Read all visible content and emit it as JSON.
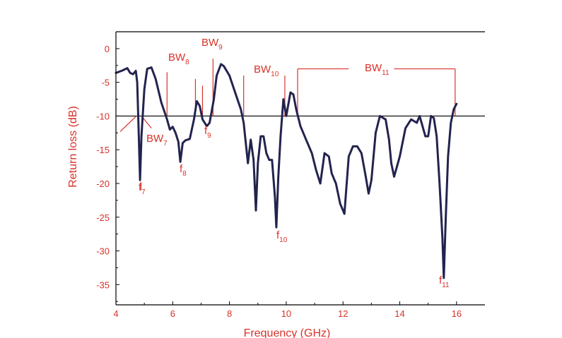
{
  "chart_data": {
    "type": "line",
    "xlabel": "Frequency (GHz)",
    "ylabel": "Return loss (dB)",
    "xlim": [
      4,
      17
    ],
    "ylim": [
      -38,
      2.5
    ],
    "xticks": [
      "4",
      "6",
      "8",
      "10",
      "12",
      "14",
      "16"
    ],
    "yticks": [
      "0",
      "-5",
      "-10",
      "-15",
      "-20",
      "-25",
      "-30",
      "-35"
    ],
    "reference_line_y": -10,
    "grid": false,
    "colors": {
      "curve": "#23234f",
      "accent": "#d8322a",
      "axis": "#000000"
    },
    "series": [
      {
        "x": [
          4.0,
          4.2,
          4.4,
          4.5,
          4.6,
          4.7,
          4.75,
          4.8,
          4.85,
          4.9,
          5.0,
          5.1,
          5.25,
          5.4,
          5.6,
          5.8,
          5.9,
          6.0,
          6.1,
          6.2,
          6.27,
          6.35,
          6.45,
          6.6,
          6.75,
          6.85,
          6.95,
          7.05,
          7.2,
          7.3,
          7.45,
          7.55,
          7.7,
          7.8,
          8.0,
          8.2,
          8.4,
          8.5,
          8.6,
          8.65,
          8.75,
          8.85,
          8.93,
          9.0,
          9.1,
          9.2,
          9.3,
          9.4,
          9.5,
          9.6,
          9.65,
          9.72,
          9.8,
          9.9,
          10.0,
          10.15,
          10.25,
          10.35,
          10.5,
          10.7,
          10.9,
          11.05,
          11.2,
          11.35,
          11.5,
          11.6,
          11.75,
          11.9,
          12.05,
          12.2,
          12.35,
          12.5,
          12.65,
          12.8,
          12.9,
          13.0,
          13.15,
          13.3,
          13.5,
          13.62,
          13.7,
          13.8,
          14.0,
          14.2,
          14.4,
          14.6,
          14.7,
          14.8,
          14.9,
          15.0,
          15.1,
          15.2,
          15.3,
          15.4,
          15.5,
          15.55,
          15.62,
          15.7,
          15.8,
          15.9,
          16.0
        ],
        "y": [
          -3.6,
          -3.3,
          -2.9,
          -3.6,
          -3.8,
          -3.3,
          -5.0,
          -12.0,
          -19.5,
          -13.0,
          -6.0,
          -3.0,
          -2.8,
          -4.5,
          -8.0,
          -10.5,
          -12.0,
          -11.6,
          -12.5,
          -13.8,
          -16.8,
          -14.0,
          -13.6,
          -13.4,
          -10.5,
          -7.8,
          -8.5,
          -10.5,
          -11.5,
          -11.0,
          -7.5,
          -4.0,
          -2.3,
          -2.6,
          -4.0,
          -6.5,
          -9.0,
          -11.0,
          -15.0,
          -17.0,
          -13.5,
          -16.5,
          -24.0,
          -17.0,
          -13.0,
          -13.0,
          -15.5,
          -16.5,
          -16.5,
          -22.0,
          -26.5,
          -19.0,
          -13.0,
          -7.5,
          -10.0,
          -6.5,
          -6.8,
          -9.0,
          -11.5,
          -13.5,
          -15.5,
          -18.0,
          -20.0,
          -15.5,
          -16.0,
          -18.5,
          -20.0,
          -23.0,
          -24.5,
          -16.0,
          -14.5,
          -14.5,
          -15.5,
          -19.0,
          -21.5,
          -19.5,
          -12.5,
          -10.0,
          -10.5,
          -13.5,
          -17.0,
          -19.0,
          -16.0,
          -11.8,
          -10.5,
          -11.0,
          -10.0,
          -11.5,
          -13.0,
          -13.0,
          -10.0,
          -10.3,
          -13.0,
          -20.0,
          -28.0,
          -34.0,
          -25.0,
          -16.0,
          -11.0,
          -9.0,
          -8.2
        ]
      }
    ],
    "annotations": {
      "bandwidths": [
        {
          "main": "BW",
          "sub": "7"
        },
        {
          "main": "BW",
          "sub": "8"
        },
        {
          "main": "BW",
          "sub": "9"
        },
        {
          "main": "BW",
          "sub": "10"
        },
        {
          "main": "BW",
          "sub": "11"
        }
      ],
      "resonances": [
        {
          "main": "f",
          "sub": "7"
        },
        {
          "main": "f",
          "sub": "8"
        },
        {
          "main": "f",
          "sub": "9"
        },
        {
          "main": "f",
          "sub": "10"
        },
        {
          "main": "f",
          "sub": "11"
        }
      ]
    }
  }
}
